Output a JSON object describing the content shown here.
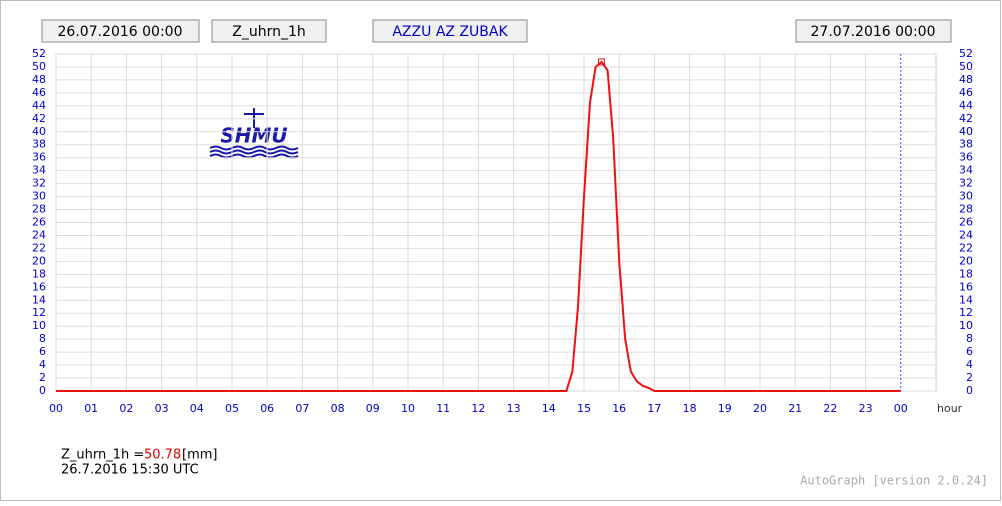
{
  "header": {
    "start": "26.07.2016 00:00",
    "variable": "Z_uhrn_1h",
    "station": "AZZU AZ ZUBAK",
    "end": "27.07.2016 00:00"
  },
  "logo": "SHMU",
  "chart_data": {
    "type": "line",
    "x_label": "hour",
    "x": [
      0,
      14.5,
      14.67,
      14.83,
      15,
      15.17,
      15.33,
      15.5,
      15.67,
      15.83,
      16,
      16.17,
      16.33,
      16.5,
      16.67,
      16.83,
      17,
      24
    ],
    "series": [
      {
        "name": "Z_uhrn_1h",
        "color": "#ee1111",
        "values": [
          0,
          0,
          3,
          13,
          30,
          44.5,
          50,
          50.78,
          49.5,
          39,
          20,
          8,
          3,
          1.5,
          0.8,
          0.5,
          0,
          0
        ]
      }
    ],
    "xlim": [
      0,
      25
    ],
    "xticks": [
      {
        "value": 0,
        "label": "00"
      },
      {
        "value": 1,
        "label": "01"
      },
      {
        "value": 2,
        "label": "02"
      },
      {
        "value": 3,
        "label": "03"
      },
      {
        "value": 4,
        "label": "04"
      },
      {
        "value": 5,
        "label": "05"
      },
      {
        "value": 6,
        "label": "06"
      },
      {
        "value": 7,
        "label": "07"
      },
      {
        "value": 8,
        "label": "08"
      },
      {
        "value": 9,
        "label": "09"
      },
      10,
      11,
      12,
      13,
      14,
      15,
      16,
      17,
      18,
      19,
      20,
      21,
      22,
      23,
      {
        "value": 24,
        "label": "00"
      }
    ],
    "ylim": [
      0,
      52
    ],
    "yticks": [
      0,
      2,
      4,
      6,
      8,
      10,
      12,
      14,
      16,
      18,
      20,
      22,
      24,
      26,
      28,
      30,
      32,
      34,
      36,
      38,
      40,
      42,
      44,
      46,
      48,
      50,
      52
    ],
    "grid": true
  },
  "footer": {
    "label": "Z_uhrn_1h =",
    "value": "50.78",
    "unit": "[mm]",
    "time": "26.7.2016 15:30 UTC",
    "version": "AutoGraph [version 2.0.24]"
  }
}
